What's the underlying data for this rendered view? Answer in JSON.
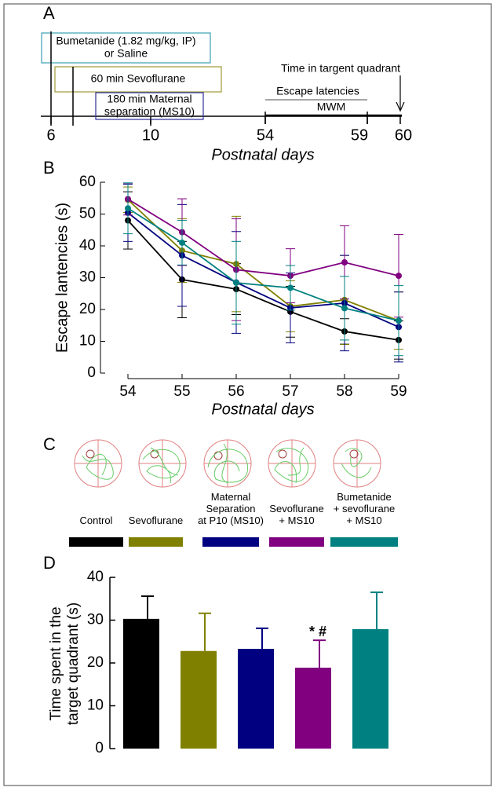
{
  "chart_data": [
    {
      "type": "timeline",
      "panel_label": "A",
      "xlabel": "Postnatal days",
      "xticks": [
        6,
        10,
        54,
        59,
        60
      ],
      "events": [
        {
          "lines": [
            "Bumetanide (1.82 mg/kg, IP)",
            "or Saline"
          ],
          "color": "#3aa0b0"
        },
        {
          "lines": [
            "60 min Sevoflurane"
          ],
          "color": "#a09a3a"
        },
        {
          "lines": [
            "180 min Maternal",
            "separation (MS10)"
          ],
          "color": "#30309a"
        },
        {
          "lines": [
            "Time in targent quadrant"
          ],
          "color": "#000000"
        },
        {
          "lines": [
            "Escape latencies"
          ],
          "color": "#888888"
        },
        {
          "lines": [
            "MWM"
          ],
          "color": "#000000"
        }
      ]
    },
    {
      "type": "line",
      "panel_label": "B",
      "xlabel": "Postnatal days",
      "ylabel": "Escape lantencies (s)",
      "x": [
        54,
        55,
        56,
        57,
        58,
        59
      ],
      "xlim": [
        54,
        59
      ],
      "xticks": [
        54,
        55,
        56,
        57,
        58,
        59
      ],
      "ylim": [
        0,
        60
      ],
      "yticks": [
        0,
        10,
        20,
        30,
        40,
        50,
        60
      ],
      "series": [
        {
          "color": "#000000",
          "values": [
            48,
            29.4,
            26.4,
            19.3,
            13.1,
            10.4
          ],
          "errors": [
            9,
            12,
            8,
            8,
            4,
            6
          ]
        },
        {
          "color": "#808000",
          "values": [
            54.5,
            38.5,
            34.3,
            21,
            23,
            16.5
          ],
          "errors": [
            4,
            10,
            15,
            8,
            14,
            9
          ]
        },
        {
          "color": "#000080",
          "values": [
            50.4,
            37,
            28.5,
            20.5,
            22,
            14.5
          ],
          "errors": [
            9,
            16,
            16,
            11,
            15,
            11
          ]
        },
        {
          "color": "#800080",
          "values": [
            54.7,
            44.3,
            32.5,
            30.6,
            34.8,
            30.6
          ],
          "errors": [
            5,
            10.5,
            16,
            8.5,
            11.5,
            13
          ]
        },
        {
          "color": "#008080",
          "values": [
            51.8,
            41,
            28.4,
            26.8,
            20.4,
            16.5
          ],
          "errors": [
            8,
            7,
            13,
            7,
            10,
            11
          ]
        }
      ]
    },
    {
      "type": "legend",
      "panel_label": "C",
      "entries": [
        {
          "name": "Control",
          "color": "#000000"
        },
        {
          "name": "Sevoflurane",
          "color": "#808000"
        },
        {
          "name": "Maternal\nSeparation\nat P10 (MS10)",
          "color": "#000080"
        },
        {
          "name": "Sevoflurane\n+ MS10",
          "color": "#800080"
        },
        {
          "name": "Bumetanide\n+ sevoflurane\n+ MS10",
          "color": "#008080"
        }
      ]
    },
    {
      "type": "bar",
      "panel_label": "D",
      "ylabel": [
        "Time spent in the",
        "target quadrant (s)"
      ],
      "categories": [
        null,
        null,
        null,
        null,
        null
      ],
      "values": [
        30.3,
        22.8,
        23.3,
        18.9,
        27.9
      ],
      "errors": [
        5.3,
        8.8,
        4.8,
        6.4,
        8.6
      ],
      "colors": [
        "#000000",
        "#808000",
        "#000080",
        "#800080",
        "#008080"
      ],
      "ylim": [
        0,
        40
      ],
      "yticks": [
        0,
        10,
        20,
        30,
        40
      ],
      "annotation": "* #"
    }
  ]
}
